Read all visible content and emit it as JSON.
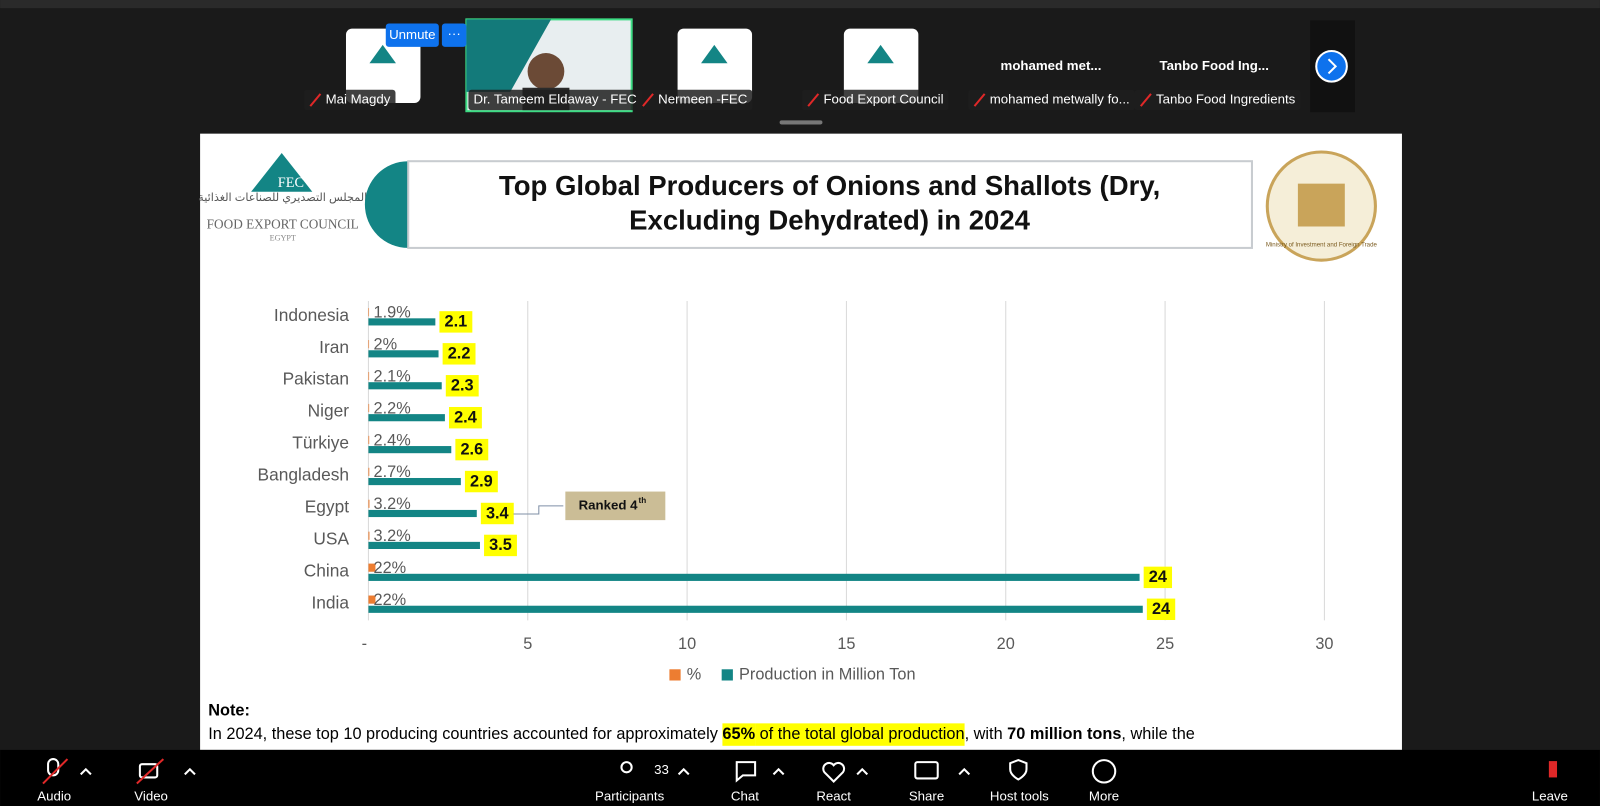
{
  "meeting": {
    "tiles": [
      {
        "name": "Mai Magdy"
      },
      {
        "name": "Dr. Tameem Eldaway - FEC"
      },
      {
        "name": "Nermeen -FEC"
      },
      {
        "name": "Food Export Council"
      },
      {
        "name": "mohamed metwally fo..."
      },
      {
        "name": "Tanbo Food Ingredients"
      }
    ],
    "large_names": [
      "mohamed  met...",
      "Tanbo Food Ing..."
    ],
    "unmute": "Unmute",
    "more_options": "···"
  },
  "toolbar": {
    "audio": "Audio",
    "video": "Video",
    "participants": "Participants",
    "participant_count": 33,
    "chat": "Chat",
    "react": "React",
    "share": "Share",
    "host_tools": "Host tools",
    "more": "More",
    "leave": "Leave"
  },
  "slide": {
    "logo_left": {
      "abbr": "FEC",
      "arabic": "المجلس التصديري للصناعات الغذائية",
      "name": "FOOD EXPORT COUNCIL",
      "country": "EGYPT"
    },
    "logo_right": {
      "name": "Ministry of Investment and Foreign Trade"
    },
    "note": {
      "heading": "Note:",
      "segments": [
        {
          "text": "In 2024, these top 10 producing countries accounted for approximately "
        },
        {
          "text": "65%",
          "bold": true,
          "highlight": true
        },
        {
          "text": " of the total global production",
          "highlight": true
        },
        {
          "text": ", with "
        },
        {
          "text": "70 million tons",
          "bold": true
        },
        {
          "text": ", while the"
        }
      ]
    }
  },
  "chart_data": {
    "type": "bar",
    "orientation": "horizontal",
    "title": [
      "Top Global Producers of Onions and Shallots (Dry,",
      "Excluding Dehydrated) in 2024"
    ],
    "categories": [
      "Indonesia",
      "Iran",
      "Pakistan",
      "Niger",
      "Türkiye",
      "Bangladesh",
      "Egypt",
      "USA",
      "China",
      "India"
    ],
    "series": [
      {
        "name": "%",
        "color": "#ed7d31",
        "values": [
          0.019,
          0.02,
          0.021,
          0.022,
          0.024,
          0.027,
          0.032,
          0.032,
          0.22,
          0.22
        ],
        "value_labels": [
          "1.9%",
          "2%",
          "2.1%",
          "2.2%",
          "2.4%",
          "2.7%",
          "3.2%",
          "3.2%",
          "22%",
          "22%"
        ]
      },
      {
        "name": "Production in Million Ton",
        "color": "#138585",
        "values": [
          2.1,
          2.2,
          2.3,
          2.4,
          2.6,
          2.9,
          3.4,
          3.5,
          24.2,
          24.3
        ],
        "value_labels": [
          "2.1",
          "2.2",
          "2.3",
          "2.4",
          "2.6",
          "2.9",
          "3.4",
          "3.5",
          "24",
          "24"
        ],
        "label_highlight": "#ffff00"
      }
    ],
    "xlim": [
      0,
      30
    ],
    "xticks": [
      {
        "value": 0,
        "label": "-"
      },
      5,
      10,
      15,
      20,
      25,
      30
    ],
    "grid": true,
    "legend": "bottom",
    "annotation": {
      "text": "Ranked 4",
      "sup": "th",
      "category": "Egypt"
    }
  }
}
